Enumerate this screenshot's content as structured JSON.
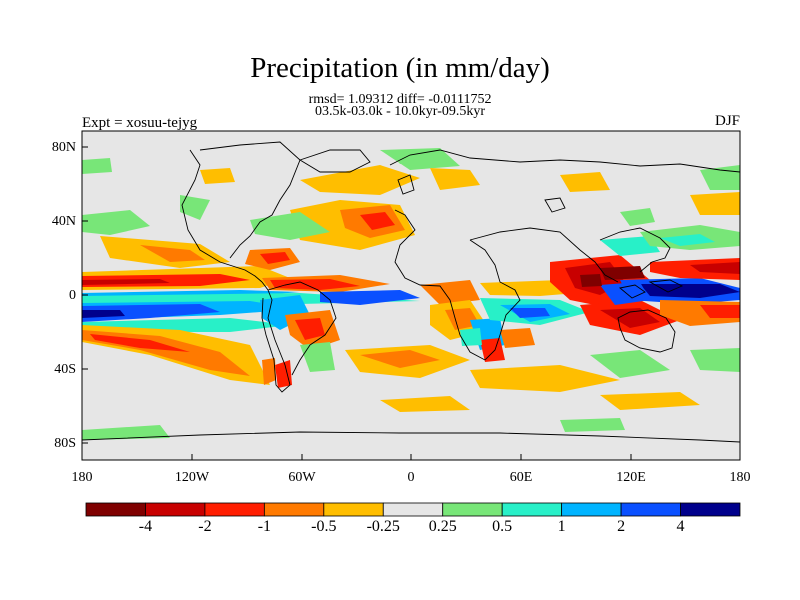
{
  "figure": {
    "title": "Precipitation (in mm/day)",
    "stats_line": "rmsd= 1.09312 diff= -0.0111752",
    "period_line": "03.5k-03.0k - 10.0kyr-09.5kyr",
    "experiment": "Expt = xosuu-tejyg",
    "season": "DJF"
  },
  "axes": {
    "y_ticks": [
      "80N",
      "40N",
      "0",
      "40S",
      "80S"
    ],
    "x_ticks": [
      "180",
      "120W",
      "60W",
      "0",
      "60E",
      "120E",
      "180"
    ]
  },
  "colorbar": {
    "colors": [
      "#7f0000",
      "#c80000",
      "#ff1e00",
      "#ff7a00",
      "#ffbe00",
      "#e6e6e6",
      "#78e678",
      "#28f0c8",
      "#00b4ff",
      "#0a50ff",
      "#00008c"
    ],
    "labels": [
      "-4",
      "-2",
      "-1",
      "-0.5",
      "-0.25",
      "0.25",
      "0.5",
      "1",
      "2",
      "4"
    ]
  }
}
